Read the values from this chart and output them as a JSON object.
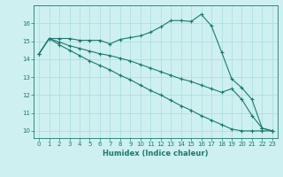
{
  "xlabel": "Humidex (Indice chaleur)",
  "x_values": [
    0,
    1,
    2,
    3,
    4,
    5,
    6,
    7,
    8,
    9,
    10,
    11,
    12,
    13,
    14,
    15,
    16,
    17,
    18,
    19,
    20,
    21,
    22,
    23
  ],
  "line1": [
    14.3,
    15.15,
    15.15,
    15.15,
    15.05,
    15.05,
    15.05,
    14.85,
    15.1,
    15.2,
    15.3,
    15.5,
    15.8,
    16.15,
    16.15,
    16.1,
    16.5,
    15.85,
    14.4,
    12.9,
    12.4,
    11.75,
    10.15,
    10.0
  ],
  "line2": [
    14.3,
    15.15,
    14.95,
    14.75,
    14.6,
    14.45,
    14.3,
    14.2,
    14.05,
    13.9,
    13.7,
    13.5,
    13.3,
    13.1,
    12.9,
    12.75,
    12.55,
    12.35,
    12.15,
    12.35,
    11.75,
    10.85,
    10.15,
    10.0
  ],
  "line3": [
    14.3,
    15.15,
    14.8,
    14.5,
    14.2,
    13.9,
    13.65,
    13.4,
    13.1,
    12.85,
    12.55,
    12.25,
    12.0,
    11.7,
    11.4,
    11.15,
    10.85,
    10.6,
    10.35,
    10.1,
    10.0,
    10.0,
    10.0,
    10.0
  ],
  "line_color": "#1a7a6e",
  "bg_color": "#cef0f0",
  "grid_color": "#aadddd",
  "ylim": [
    9.6,
    17.0
  ],
  "xlim": [
    -0.5,
    23.5
  ],
  "yticks": [
    10,
    11,
    12,
    13,
    14,
    15,
    16
  ],
  "xticks": [
    0,
    1,
    2,
    3,
    4,
    5,
    6,
    7,
    8,
    9,
    10,
    11,
    12,
    13,
    14,
    15,
    16,
    17,
    18,
    19,
    20,
    21,
    22,
    23
  ]
}
